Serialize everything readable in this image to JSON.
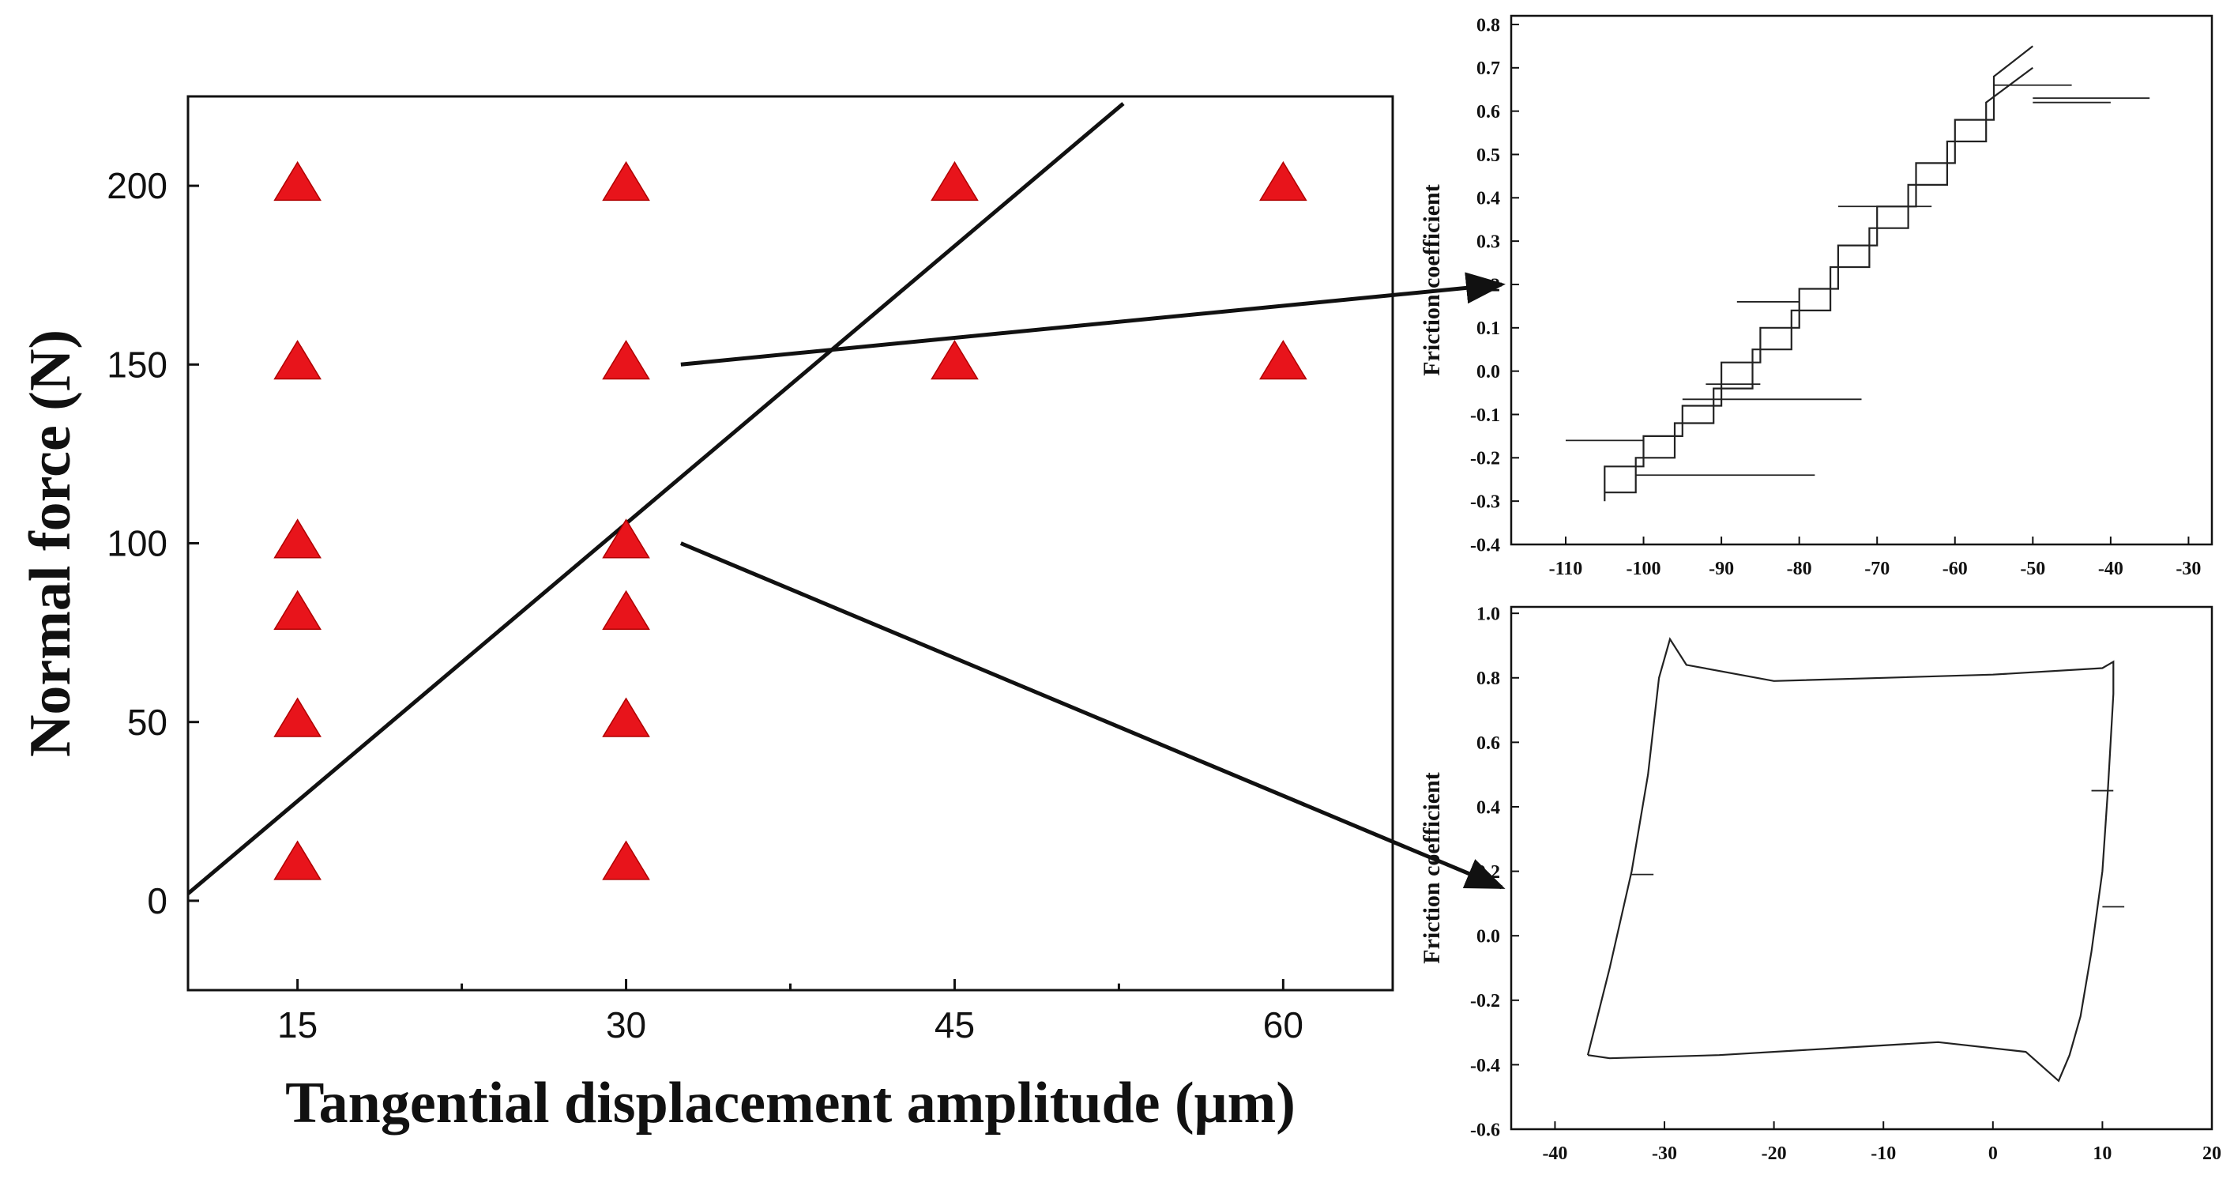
{
  "chart_data": [
    {
      "id": "main",
      "type": "scatter",
      "xlabel": "Tangential displacement amplitude (μm)",
      "ylabel": "Normal force (N)",
      "xlim": [
        10,
        65
      ],
      "ylim": [
        -25,
        225
      ],
      "x_ticks": [
        15,
        30,
        45,
        60
      ],
      "x_tick_labels": [
        "15",
        "30",
        "45",
        "60"
      ],
      "y_ticks": [
        0,
        50,
        100,
        150,
        200
      ],
      "y_tick_labels": [
        "0",
        "50",
        "100",
        "150",
        "200"
      ],
      "marker": "triangle",
      "marker_color": "#e8141b",
      "points": [
        {
          "x": 15,
          "y": 200
        },
        {
          "x": 15,
          "y": 150
        },
        {
          "x": 15,
          "y": 100
        },
        {
          "x": 15,
          "y": 80
        },
        {
          "x": 15,
          "y": 50
        },
        {
          "x": 15,
          "y": 10
        },
        {
          "x": 30,
          "y": 200
        },
        {
          "x": 30,
          "y": 150
        },
        {
          "x": 30,
          "y": 100
        },
        {
          "x": 30,
          "y": 80
        },
        {
          "x": 30,
          "y": 50
        },
        {
          "x": 30,
          "y": 10
        },
        {
          "x": 45,
          "y": 200
        },
        {
          "x": 45,
          "y": 150
        },
        {
          "x": 60,
          "y": 200
        },
        {
          "x": 60,
          "y": 150
        }
      ],
      "boundary_line": {
        "x": [
          10,
          52.7
        ],
        "y": [
          2,
          223
        ]
      },
      "callouts": [
        {
          "from": {
            "x": 32.5,
            "y": 150
          },
          "to_chart": "top-right",
          "to": {
            "x": -110,
            "y": 0.2
          }
        },
        {
          "from": {
            "x": 32.5,
            "y": 100
          },
          "to_chart": "bottom-right",
          "to": {
            "x": -37,
            "y": 0.15
          }
        }
      ]
    },
    {
      "id": "top-right",
      "type": "line",
      "ylabel": "Friction coefficient",
      "xlabel": "",
      "xlim": [
        -117,
        -27
      ],
      "ylim": [
        -0.4,
        0.82
      ],
      "x_ticks": [
        -110,
        -100,
        -90,
        -80,
        -70,
        -60,
        -50,
        -40,
        -30
      ],
      "x_tick_labels": [
        "-110",
        "-100",
        "-90",
        "-80",
        "-70",
        "-60",
        "-50",
        "-40",
        "-30"
      ],
      "y_ticks": [
        -0.4,
        -0.3,
        -0.2,
        -0.1,
        0.0,
        0.1,
        0.2,
        0.3,
        0.4,
        0.5,
        0.6,
        0.7,
        0.8
      ],
      "y_tick_labels": [
        "-0.4",
        "-0.3",
        "-0.2",
        "-0.1",
        "0.0",
        "0.1",
        "0.2",
        "0.3",
        "0.4",
        "0.5",
        "0.6",
        "0.7",
        "0.8"
      ],
      "series": [
        {
          "name": "trace-upper",
          "x": [
            -105,
            -105,
            -100,
            -100,
            -95,
            -95,
            -90,
            -90,
            -85,
            -85,
            -80,
            -80,
            -75,
            -75,
            -70,
            -70,
            -65,
            -65,
            -60,
            -60,
            -55,
            -55,
            -50
          ],
          "y": [
            -0.3,
            -0.22,
            -0.22,
            -0.15,
            -0.15,
            -0.08,
            -0.08,
            0.02,
            0.02,
            0.1,
            0.1,
            0.19,
            0.19,
            0.29,
            0.29,
            0.38,
            0.38,
            0.48,
            0.48,
            0.58,
            0.58,
            0.68,
            0.75
          ]
        },
        {
          "name": "trace-lower",
          "x": [
            -105,
            -101,
            -101,
            -96,
            -96,
            -91,
            -91,
            -86,
            -86,
            -81,
            -81,
            -76,
            -76,
            -71,
            -71,
            -66,
            -66,
            -61,
            -61,
            -56,
            -56,
            -50
          ],
          "y": [
            -0.28,
            -0.28,
            -0.2,
            -0.2,
            -0.12,
            -0.12,
            -0.04,
            -0.04,
            0.05,
            0.05,
            0.14,
            0.14,
            0.24,
            0.24,
            0.33,
            0.33,
            0.43,
            0.43,
            0.53,
            0.53,
            0.62,
            0.7
          ]
        }
      ],
      "spikes": [
        {
          "x": [
            -110,
            -100
          ],
          "y": -0.16
        },
        {
          "x": [
            -101,
            -78
          ],
          "y": -0.24
        },
        {
          "x": [
            -95,
            -72
          ],
          "y": -0.065
        },
        {
          "x": [
            -92,
            -85
          ],
          "y": -0.03
        },
        {
          "x": [
            -50,
            -40
          ],
          "y": 0.62
        },
        {
          "x": [
            -50,
            -35
          ],
          "y": 0.63
        },
        {
          "x": [
            -55,
            -45
          ],
          "y": 0.66
        },
        {
          "x": [
            -88,
            -80
          ],
          "y": 0.16
        },
        {
          "x": [
            -75,
            -63
          ],
          "y": 0.38
        }
      ]
    },
    {
      "id": "bottom-right",
      "type": "line",
      "ylabel": "Friction coefficient",
      "xlabel": "",
      "xlim": [
        -44,
        20
      ],
      "ylim": [
        -0.6,
        1.02
      ],
      "x_ticks": [
        -40,
        -30,
        -20,
        -10,
        0,
        10,
        20
      ],
      "x_tick_labels": [
        "-40",
        "-30",
        "-20",
        "-10",
        "0",
        "10",
        "20"
      ],
      "y_ticks": [
        -0.6,
        -0.4,
        -0.2,
        0.0,
        0.2,
        0.4,
        0.6,
        0.8,
        1.0
      ],
      "y_tick_labels": [
        "-0.6",
        "-0.4",
        "-0.2",
        "0.0",
        "0.2",
        "0.4",
        "0.6",
        "0.8",
        "1.0"
      ],
      "series": [
        {
          "name": "loop",
          "x": [
            -37,
            -35,
            -33,
            -31.5,
            -30.5,
            -29.5,
            -28,
            -20,
            -10,
            0,
            10,
            11,
            11,
            10.5,
            10,
            9,
            8,
            7,
            6,
            5,
            3,
            -5,
            -15,
            -25,
            -35,
            -37
          ],
          "y": [
            -0.37,
            -0.1,
            0.2,
            0.5,
            0.8,
            0.92,
            0.84,
            0.79,
            0.8,
            0.81,
            0.83,
            0.85,
            0.75,
            0.45,
            0.2,
            -0.05,
            -0.25,
            -0.37,
            -0.45,
            -0.42,
            -0.36,
            -0.33,
            -0.35,
            -0.37,
            -0.38,
            -0.37
          ]
        }
      ],
      "spikes": [
        {
          "x": [
            -33,
            -31
          ],
          "y": 0.19
        },
        {
          "x": [
            9,
            11
          ],
          "y": 0.45
        },
        {
          "x": [
            10,
            12
          ],
          "y": 0.09
        }
      ]
    }
  ]
}
